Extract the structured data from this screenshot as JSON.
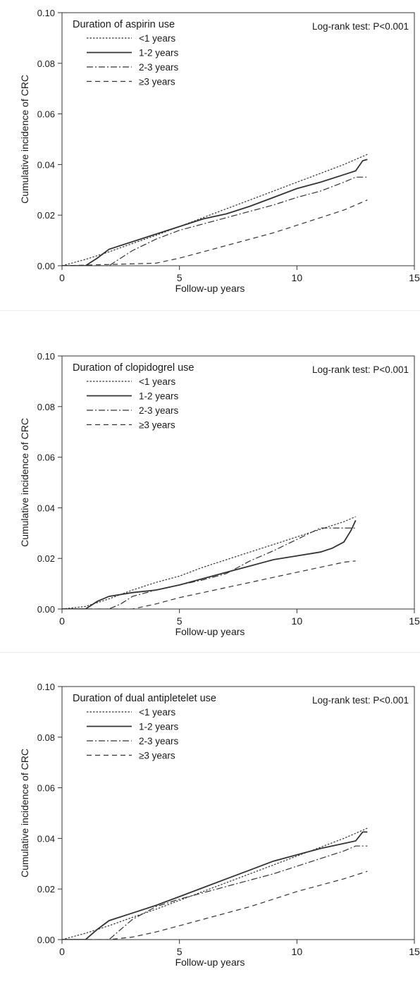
{
  "chart_data": [
    {
      "type": "line",
      "legend_title": "Duration of aspirin use",
      "annotation": "Log-rank test: P<0.001",
      "xlabel": "Follow-up years",
      "ylabel": "Cumulative incidence of CRC",
      "xlim": [
        0,
        15
      ],
      "ylim": [
        0,
        0.1
      ],
      "xticks": [
        "0",
        "5",
        "10",
        "15"
      ],
      "yticks": [
        "0.00",
        "0.02",
        "0.04",
        "0.06",
        "0.08",
        "0.10"
      ],
      "legend_placement": "top-left",
      "series": [
        {
          "name": "<1 years",
          "style": "dotted",
          "x": [
            0,
            1,
            2,
            3,
            4,
            5,
            6,
            7,
            8,
            9,
            10,
            11,
            12,
            13
          ],
          "y": [
            0,
            0.0025,
            0.0055,
            0.0088,
            0.012,
            0.0155,
            0.019,
            0.0225,
            0.026,
            0.0295,
            0.033,
            0.0365,
            0.04,
            0.044
          ]
        },
        {
          "name": "1-2 years",
          "style": "solid",
          "x": [
            0,
            1,
            1.5,
            2,
            3,
            4,
            5,
            6,
            7,
            8,
            9,
            10,
            11,
            12,
            12.5,
            12.8,
            13
          ],
          "y": [
            0,
            0,
            0.003,
            0.0065,
            0.0095,
            0.0125,
            0.0155,
            0.0185,
            0.0205,
            0.0235,
            0.027,
            0.0305,
            0.033,
            0.036,
            0.0375,
            0.0415,
            0.042
          ]
        },
        {
          "name": "2-3 years",
          "style": "dash-dot",
          "x": [
            0,
            2,
            2.5,
            3,
            4,
            5,
            6,
            7,
            8,
            9,
            10,
            11,
            12,
            12.5,
            13
          ],
          "y": [
            0,
            0,
            0.003,
            0.006,
            0.0105,
            0.014,
            0.0165,
            0.019,
            0.0215,
            0.024,
            0.027,
            0.0295,
            0.033,
            0.035,
            0.035
          ]
        },
        {
          "name": "≥3 years",
          "style": "dashed",
          "x": [
            0,
            4,
            5,
            6,
            7,
            8,
            9,
            10,
            11,
            12,
            13
          ],
          "y": [
            0,
            0.001,
            0.003,
            0.0055,
            0.008,
            0.0105,
            0.013,
            0.016,
            0.019,
            0.022,
            0.026
          ]
        }
      ]
    },
    {
      "type": "line",
      "legend_title": "Duration of clopidogrel use",
      "annotation": "Log-rank test: P<0.001",
      "xlabel": "Follow-up years",
      "ylabel": "Cumulative incidence of CRC",
      "xlim": [
        0,
        15
      ],
      "ylim": [
        0,
        0.1
      ],
      "xticks": [
        "0",
        "5",
        "10",
        "15"
      ],
      "yticks": [
        "0.00",
        "0.02",
        "0.04",
        "0.06",
        "0.08",
        "0.10"
      ],
      "legend_placement": "top-left",
      "series": [
        {
          "name": "<1 years",
          "style": "dotted",
          "x": [
            0,
            1,
            2,
            3,
            4,
            5,
            6,
            7,
            8,
            9,
            10,
            11,
            12,
            12.5
          ],
          "y": [
            0,
            0.001,
            0.004,
            0.0075,
            0.0105,
            0.013,
            0.0165,
            0.0195,
            0.0225,
            0.0255,
            0.0285,
            0.0315,
            0.0345,
            0.0365
          ]
        },
        {
          "name": "1-2 years",
          "style": "solid",
          "x": [
            0,
            1,
            1.5,
            2,
            3,
            4,
            5,
            6,
            7,
            8,
            9,
            10,
            11,
            11.5,
            12,
            12.3,
            12.5
          ],
          "y": [
            0,
            0,
            0.003,
            0.005,
            0.0065,
            0.0075,
            0.0095,
            0.012,
            0.0145,
            0.017,
            0.0195,
            0.021,
            0.0225,
            0.024,
            0.0265,
            0.031,
            0.035
          ]
        },
        {
          "name": "2-3 years",
          "style": "dash-dot",
          "x": [
            0,
            2,
            2.5,
            3,
            4,
            5,
            6,
            7,
            8,
            9,
            10,
            11,
            12,
            12.5
          ],
          "y": [
            0,
            0,
            0.002,
            0.005,
            0.0075,
            0.0095,
            0.0115,
            0.014,
            0.019,
            0.023,
            0.0275,
            0.032,
            0.032,
            0.032
          ]
        },
        {
          "name": "≥3 years",
          "style": "dashed",
          "x": [
            0,
            3,
            4,
            5,
            6,
            7,
            8,
            9,
            10,
            11,
            12,
            12.5
          ],
          "y": [
            0,
            0,
            0.002,
            0.0045,
            0.0065,
            0.0085,
            0.0105,
            0.0125,
            0.0145,
            0.0165,
            0.0185,
            0.019
          ]
        }
      ]
    },
    {
      "type": "line",
      "legend_title": "Duration of dual antipletelet use",
      "annotation": "Log-rank test: P<0.001",
      "xlabel": "Follow-up years",
      "ylabel": "Cumulative incidence of CRC",
      "xlim": [
        0,
        15
      ],
      "ylim": [
        0,
        0.1
      ],
      "xticks": [
        "0",
        "5",
        "10",
        "15"
      ],
      "yticks": [
        "0.00",
        "0.02",
        "0.04",
        "0.06",
        "0.08",
        "0.10"
      ],
      "legend_placement": "top-left",
      "series": [
        {
          "name": "<1 years",
          "style": "dotted",
          "x": [
            0,
            1,
            2,
            3,
            4,
            5,
            6,
            7,
            8,
            9,
            10,
            11,
            12,
            13
          ],
          "y": [
            0,
            0.0025,
            0.0055,
            0.0088,
            0.012,
            0.0155,
            0.019,
            0.0225,
            0.026,
            0.0295,
            0.033,
            0.0365,
            0.04,
            0.044
          ]
        },
        {
          "name": "1-2 years",
          "style": "solid",
          "x": [
            0,
            1,
            1.5,
            2,
            3,
            4,
            5,
            6,
            7,
            8,
            9,
            10,
            11,
            12,
            12.5,
            12.8,
            13
          ],
          "y": [
            0,
            0,
            0.004,
            0.0075,
            0.0105,
            0.0135,
            0.017,
            0.0205,
            0.024,
            0.0275,
            0.031,
            0.0335,
            0.036,
            0.038,
            0.039,
            0.0425,
            0.0425
          ]
        },
        {
          "name": "2-3 years",
          "style": "dash-dot",
          "x": [
            0,
            2,
            2.5,
            3,
            4,
            5,
            6,
            7,
            8,
            9,
            10,
            11,
            12,
            12.5,
            13
          ],
          "y": [
            0,
            0,
            0.004,
            0.008,
            0.013,
            0.016,
            0.0185,
            0.021,
            0.0235,
            0.026,
            0.029,
            0.032,
            0.035,
            0.037,
            0.037
          ]
        },
        {
          "name": "≥3 years",
          "style": "dashed",
          "x": [
            0,
            2,
            3,
            4,
            5,
            6,
            7,
            8,
            9,
            10,
            11,
            12,
            13
          ],
          "y": [
            0,
            0,
            0.001,
            0.003,
            0.0055,
            0.008,
            0.0105,
            0.013,
            0.016,
            0.019,
            0.0215,
            0.024,
            0.027
          ]
        }
      ]
    }
  ]
}
